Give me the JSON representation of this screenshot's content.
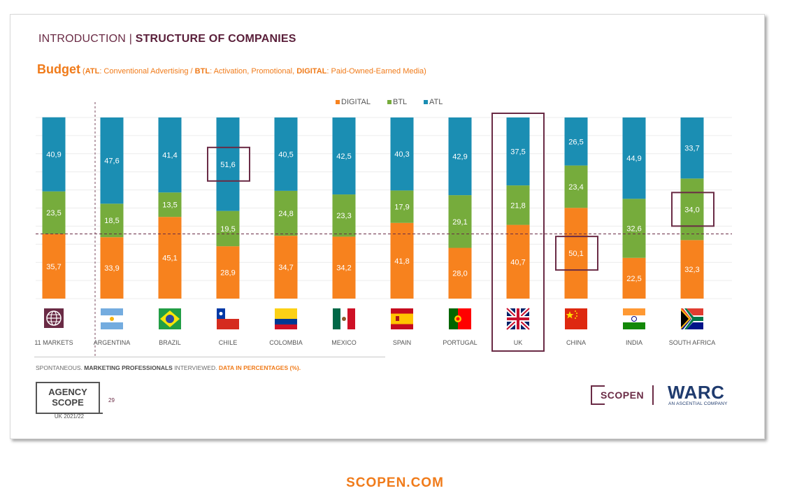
{
  "header": {
    "prefix": "INTRODUCTION | ",
    "title": "STRUCTURE OF COMPANIES"
  },
  "budget": {
    "title": "Budget",
    "open": " (",
    "atl_key": "ATL",
    "atl_desc": ": Conventional Advertising / ",
    "btl_key": "BTL",
    "btl_desc": ": Activation, Promotional, ",
    "digital_key": "DIGITAL",
    "digital_desc": ": Paid-Owned-Earned Media)"
  },
  "colors": {
    "digital": "#f7821e",
    "btl": "#76ac3c",
    "atl": "#1b8eb3",
    "highlight": "#6a2b45"
  },
  "chart_data": {
    "type": "bar",
    "stacked": true,
    "percent": true,
    "legend": {
      "position": "top-center",
      "entries": [
        "DIGITAL",
        "BTL",
        "ATL"
      ]
    },
    "categories": [
      "11 MARKETS",
      "ARGENTINA",
      "BRAZIL",
      "CHILE",
      "COLOMBIA",
      "MEXICO",
      "SPAIN",
      "PORTUGAL",
      "UK",
      "CHINA",
      "INDIA",
      "SOUTH AFRICA"
    ],
    "series": [
      {
        "name": "DIGITAL",
        "values": [
          "35,7",
          "33,9",
          "45,1",
          "28,9",
          "34,7",
          "34,2",
          "41,8",
          "28,0",
          "40,7",
          "50,1",
          "22,5",
          "32,3"
        ]
      },
      {
        "name": "BTL",
        "values": [
          "23,5",
          "18,5",
          "13,5",
          "19,5",
          "24,8",
          "23,3",
          "17,9",
          "29,1",
          "21,8",
          "23,4",
          "32,6",
          "34,0"
        ]
      },
      {
        "name": "ATL",
        "values": [
          "40,9",
          "47,6",
          "41,4",
          "51,6",
          "40,5",
          "42,5",
          "40,3",
          "42,9",
          "37,5",
          "26,5",
          "44,9",
          "33,7"
        ]
      }
    ],
    "reference_line": 35.7,
    "highlights": [
      {
        "category": "CHILE",
        "series": "ATL"
      },
      {
        "category": "SOUTH AFRICA",
        "series": "BTL"
      },
      {
        "category": "CHINA",
        "series": "DIGITAL"
      },
      {
        "category": "UK",
        "series": "all"
      }
    ],
    "ylim": [
      0,
      100
    ],
    "grid": true
  },
  "flags": [
    "globe-icon",
    "argentina-flag",
    "brazil-flag",
    "chile-flag",
    "colombia-flag",
    "mexico-flag",
    "spain-flag",
    "portugal-flag",
    "uk-flag",
    "china-flag",
    "india-flag",
    "south-africa-flag"
  ],
  "footer": {
    "note_1": "SPONTANEOUS. ",
    "note_2": "MARKETING PROFESSIONALS",
    "note_3": " INTERVIEWED. ",
    "note_4": "DATA IN PERCENTAGES (%).",
    "agency_line1": "AGENCY",
    "agency_line2": "SCOPE",
    "agency_sub": "UK 2021/22",
    "page": "29",
    "scopen": "SCOPEN",
    "warc": "WARC",
    "warc_sub": "AN ASCENTIAL COMPANY"
  },
  "site": "SCOPEN.COM"
}
